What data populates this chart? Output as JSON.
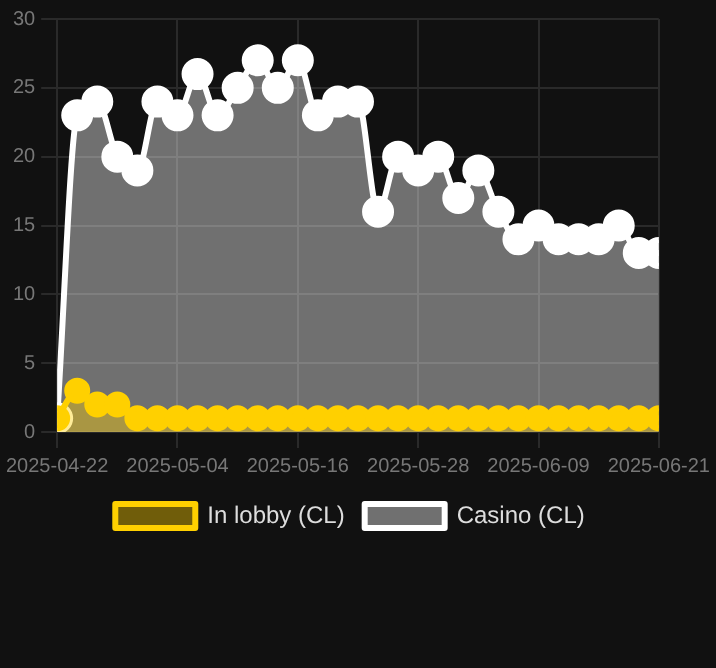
{
  "chart_data": {
    "type": "area",
    "x": [
      "2025-04-22",
      "2025-04-24",
      "2025-04-26",
      "2025-04-28",
      "2025-04-30",
      "2025-05-02",
      "2025-05-04",
      "2025-05-06",
      "2025-05-08",
      "2025-05-10",
      "2025-05-12",
      "2025-05-14",
      "2025-05-16",
      "2025-05-18",
      "2025-05-20",
      "2025-05-22",
      "2025-05-24",
      "2025-05-26",
      "2025-05-28",
      "2025-05-30",
      "2025-06-01",
      "2025-06-03",
      "2025-06-05",
      "2025-06-07",
      "2025-06-09",
      "2025-06-11",
      "2025-06-13",
      "2025-06-15",
      "2025-06-17",
      "2025-06-19",
      "2025-06-21"
    ],
    "series": [
      {
        "name": "In lobby (CL)",
        "color": "#ffd000",
        "values": [
          1,
          3,
          2,
          2,
          1,
          1,
          1,
          1,
          1,
          1,
          1,
          1,
          1,
          1,
          1,
          1,
          1,
          1,
          1,
          1,
          1,
          1,
          1,
          1,
          1,
          1,
          1,
          1,
          1,
          1,
          1
        ]
      },
      {
        "name": "Casino (CL)",
        "color": "#ffffff",
        "values": [
          1,
          23,
          24,
          20,
          19,
          24,
          23,
          26,
          23,
          25,
          27,
          25,
          27,
          23,
          24,
          24,
          16,
          20,
          19,
          20,
          17,
          19,
          16,
          14,
          15,
          14,
          14,
          14,
          15,
          13,
          13
        ]
      }
    ],
    "xlim": [
      "2025-04-22",
      "2025-06-21"
    ],
    "xticks": [
      "2025-04-22",
      "2025-05-04",
      "2025-05-16",
      "2025-05-28",
      "2025-06-09",
      "2025-06-21"
    ],
    "ylim": [
      0,
      30
    ],
    "yticks": [
      0,
      5,
      10,
      15,
      20,
      25,
      30
    ],
    "grid": true,
    "legend": "bottom",
    "marker": "circle",
    "line_style": "solid"
  }
}
